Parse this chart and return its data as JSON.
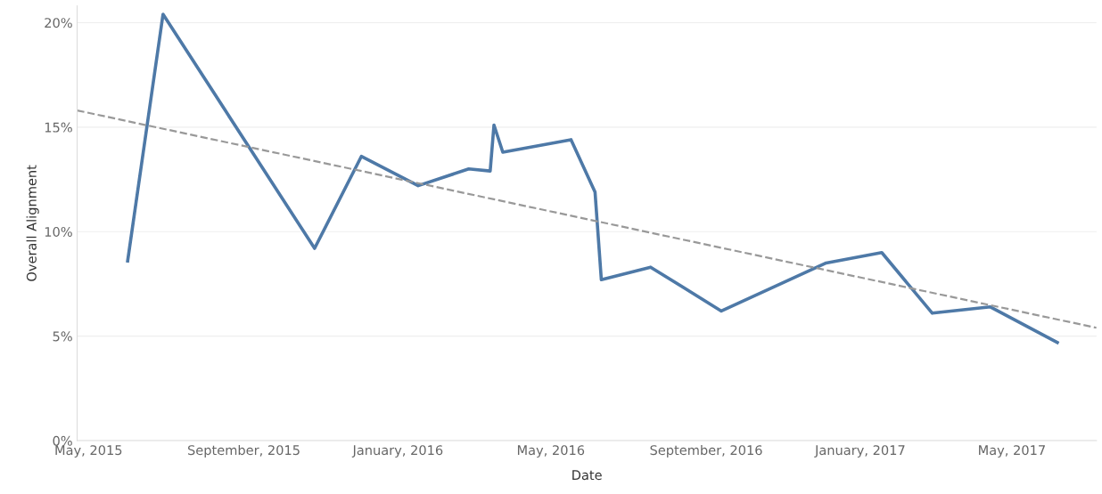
{
  "chart_data": {
    "type": "line",
    "xlabel": "Date",
    "ylabel": "Overall Alignment",
    "xlim": [
      "2015-04-22",
      "2017-07-07"
    ],
    "xticks": [
      {
        "value": "2015-05-01",
        "label": "May, 2015"
      },
      {
        "value": "2015-09-01",
        "label": "September, 2015"
      },
      {
        "value": "2016-01-01",
        "label": "January, 2016"
      },
      {
        "value": "2016-05-01",
        "label": "May, 2016"
      },
      {
        "value": "2016-09-01",
        "label": "September, 2016"
      },
      {
        "value": "2017-01-01",
        "label": "January, 2017"
      },
      {
        "value": "2017-05-01",
        "label": "May, 2017"
      }
    ],
    "ylim": [
      0,
      20.8
    ],
    "yticks": [
      {
        "value": 0,
        "label": "0%"
      },
      {
        "value": 5,
        "label": "5%"
      },
      {
        "value": 10,
        "label": "10%"
      },
      {
        "value": 15,
        "label": "15%"
      },
      {
        "value": 20,
        "label": "20%"
      }
    ],
    "grid": "y",
    "legend": false,
    "marker": "none",
    "series": [
      {
        "color": "#4e79a7",
        "line_style": "solid",
        "x": [
          "2015-06-01",
          "2015-06-29",
          "2015-10-27",
          "2015-12-03",
          "2016-01-17",
          "2016-02-26",
          "2016-03-14",
          "2016-03-17",
          "2016-03-24",
          "2016-05-17",
          "2016-06-05",
          "2016-06-10",
          "2016-07-19",
          "2016-09-13",
          "2016-12-05",
          "2017-01-18",
          "2017-02-27",
          "2017-04-14",
          "2017-06-06"
        ],
        "values": [
          8.6,
          20.4,
          9.2,
          13.6,
          12.2,
          13.0,
          12.9,
          15.1,
          13.8,
          14.4,
          11.9,
          7.7,
          8.3,
          6.2,
          8.5,
          9.0,
          6.1,
          6.4,
          4.7
        ]
      },
      {
        "type": "line",
        "color": "#999999",
        "line_style": "dashed",
        "x": [
          "2015-04-22",
          "2017-07-07"
        ],
        "values": [
          15.8,
          5.4
        ]
      }
    ]
  }
}
